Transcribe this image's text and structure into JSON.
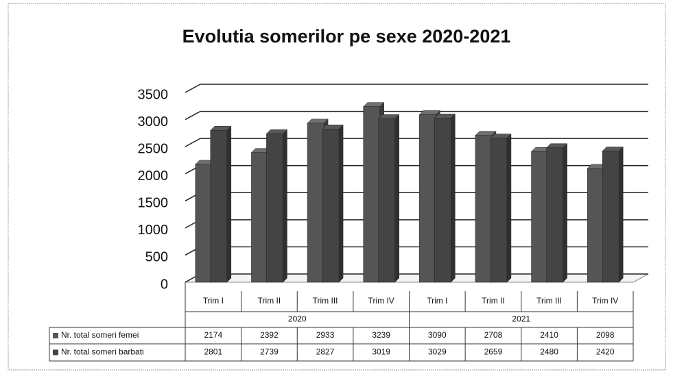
{
  "chart_data": {
    "type": "bar",
    "title": "Evolutia somerilor pe sexe 2020-2021",
    "categories": [
      "Trim I",
      "Trim II",
      "Trim III",
      "Trim IV",
      "Trim I",
      "Trim II",
      "Trim III",
      "Trim IV"
    ],
    "groups": [
      "2020",
      "2021"
    ],
    "series": [
      {
        "name": "Nr. total someri femei",
        "color": "#555555",
        "values": [
          2174,
          2392,
          2933,
          3239,
          3090,
          2708,
          2410,
          2098
        ]
      },
      {
        "name": "Nr. total someri barbati",
        "color": "#444444",
        "values": [
          2801,
          2739,
          2827,
          3019,
          3029,
          2659,
          2480,
          2420
        ]
      }
    ],
    "ylim": [
      0,
      3500
    ],
    "yticks": [
      0,
      500,
      1000,
      1500,
      2000,
      2500,
      3000,
      3500
    ],
    "grid": true
  }
}
